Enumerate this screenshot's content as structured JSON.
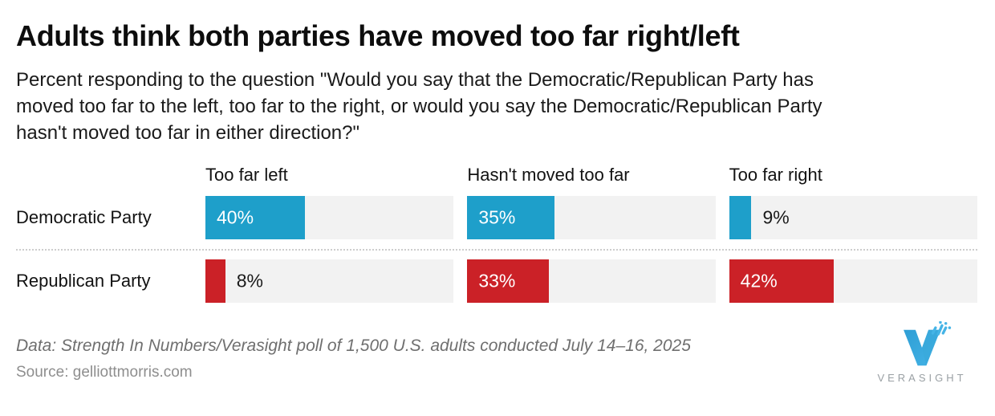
{
  "header": {
    "title": "Adults think both parties have moved too far right/left",
    "subtitle_lines": [
      "Percent responding to the question \"Would you say that the Democratic/Republican Party has",
      "moved too far to the left, too far to the right, or would you say the Democratic/Republican Party",
      "hasn't moved too far in either direction?\""
    ]
  },
  "chart_data": {
    "type": "bar",
    "orientation": "horizontal",
    "categories": [
      "Too far left",
      "Hasn't moved too far",
      "Too far right"
    ],
    "series": [
      {
        "name": "Democratic Party",
        "color": "#1E9FCA",
        "values": [
          40,
          35,
          9
        ]
      },
      {
        "name": "Republican Party",
        "color": "#CB2127",
        "values": [
          8,
          33,
          42
        ]
      }
    ],
    "xlim": [
      0,
      100
    ],
    "unit": "%",
    "value_label_format": "{v}%",
    "inside_label_threshold": 15,
    "track_color": "#F2F2F2",
    "grid": false,
    "legend": "none"
  },
  "footer": {
    "data_note": "Data: Strength In Numbers/Verasight poll of 1,500 U.S. adults conducted July 14–16, 2025",
    "source": "Source: gelliottmorris.com",
    "brand": "VERASIGHT",
    "logo_blue": "#3AA9DC",
    "logo_accent": "#45B4E6"
  }
}
